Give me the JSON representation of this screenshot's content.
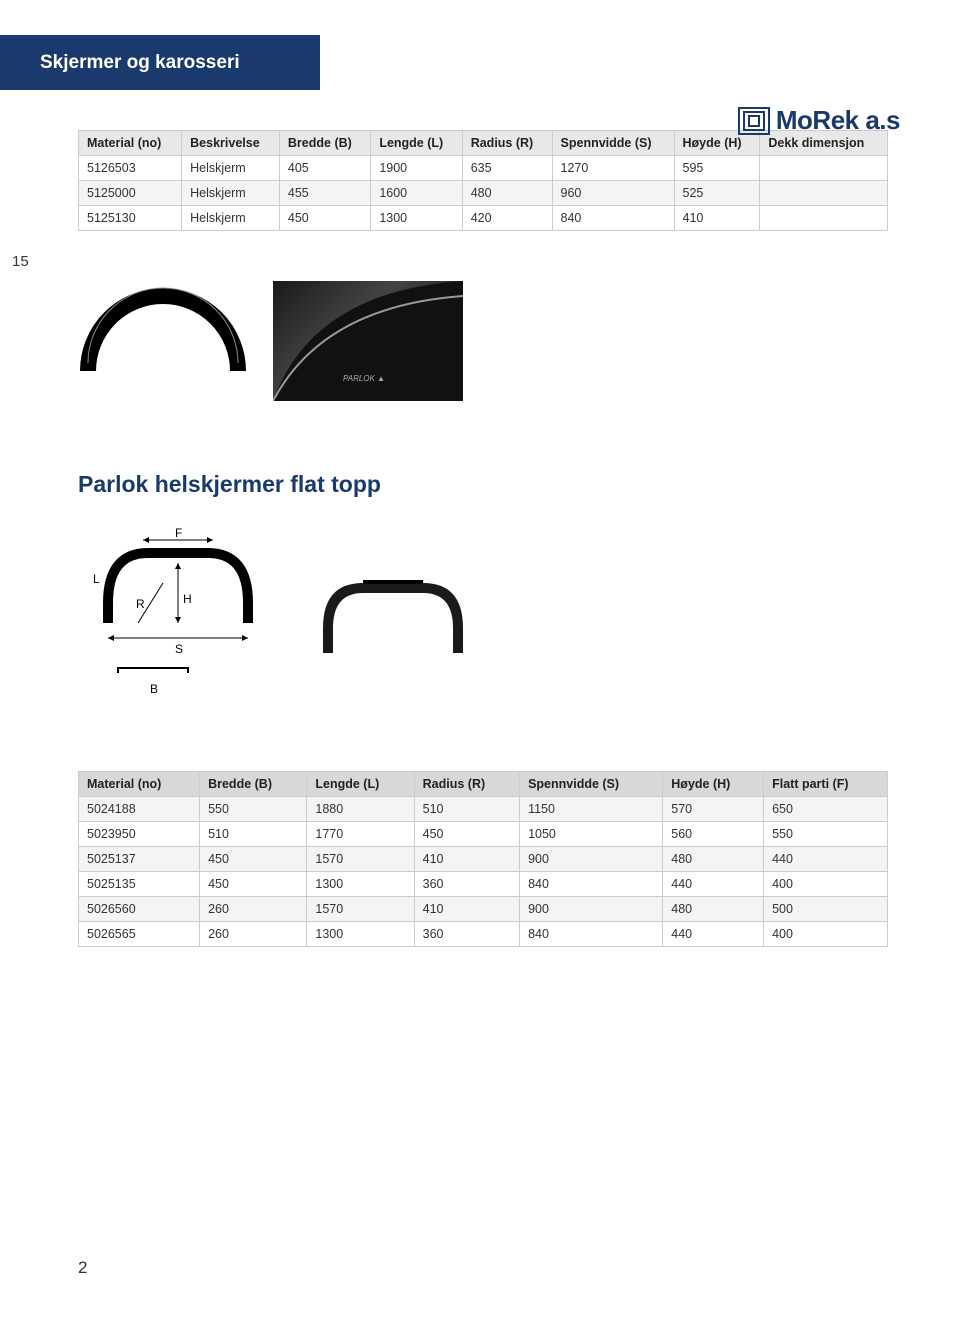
{
  "header": {
    "title": "Skjermer og karosseri"
  },
  "logo": {
    "text": "MoRek a.s"
  },
  "page_side": "15",
  "page_bottom": "2",
  "colors": {
    "brand_blue": "#1a3a6e",
    "header_bg": "#e8e8e8",
    "row_alt": "#f4f4f4",
    "border": "#cccccc",
    "page_bg": "#ffffff"
  },
  "table1": {
    "columns": [
      "Material (no)",
      "Beskrivelse",
      "Bredde (B)",
      "Lengde (L)",
      "Radius (R)",
      "Spennvidde (S)",
      "Høyde (H)",
      "Dekk dimensjon"
    ],
    "rows": [
      [
        "5126503",
        "Helskjerm",
        "405",
        "1900",
        "635",
        "1270",
        "595",
        ""
      ],
      [
        "5125000",
        "Helskjerm",
        "455",
        "1600",
        "480",
        "960",
        "525",
        ""
      ],
      [
        "5125130",
        "Helskjerm",
        "450",
        "1300",
        "420",
        "840",
        "410",
        ""
      ]
    ]
  },
  "section2": {
    "title": "Parlok helskjermer flat topp"
  },
  "diagram_labels": {
    "F": "F",
    "L": "L",
    "R": "R",
    "H": "H",
    "S": "S",
    "B": "B"
  },
  "table2": {
    "columns": [
      "Material (no)",
      "Bredde (B)",
      "Lengde (L)",
      "Radius (R)",
      "Spennvidde (S)",
      "Høyde (H)",
      "Flatt parti (F)"
    ],
    "rows": [
      [
        "5024188",
        "550",
        "1880",
        "510",
        "1150",
        "570",
        "650"
      ],
      [
        "5023950",
        "510",
        "1770",
        "450",
        "1050",
        "560",
        "550"
      ],
      [
        "5025137",
        "450",
        "1570",
        "410",
        "900",
        "480",
        "440"
      ],
      [
        "5025135",
        "450",
        "1300",
        "360",
        "840",
        "440",
        "400"
      ],
      [
        "5026560",
        "260",
        "1570",
        "410",
        "900",
        "480",
        "500"
      ],
      [
        "5026565",
        "260",
        "1300",
        "360",
        "840",
        "440",
        "400"
      ]
    ]
  }
}
